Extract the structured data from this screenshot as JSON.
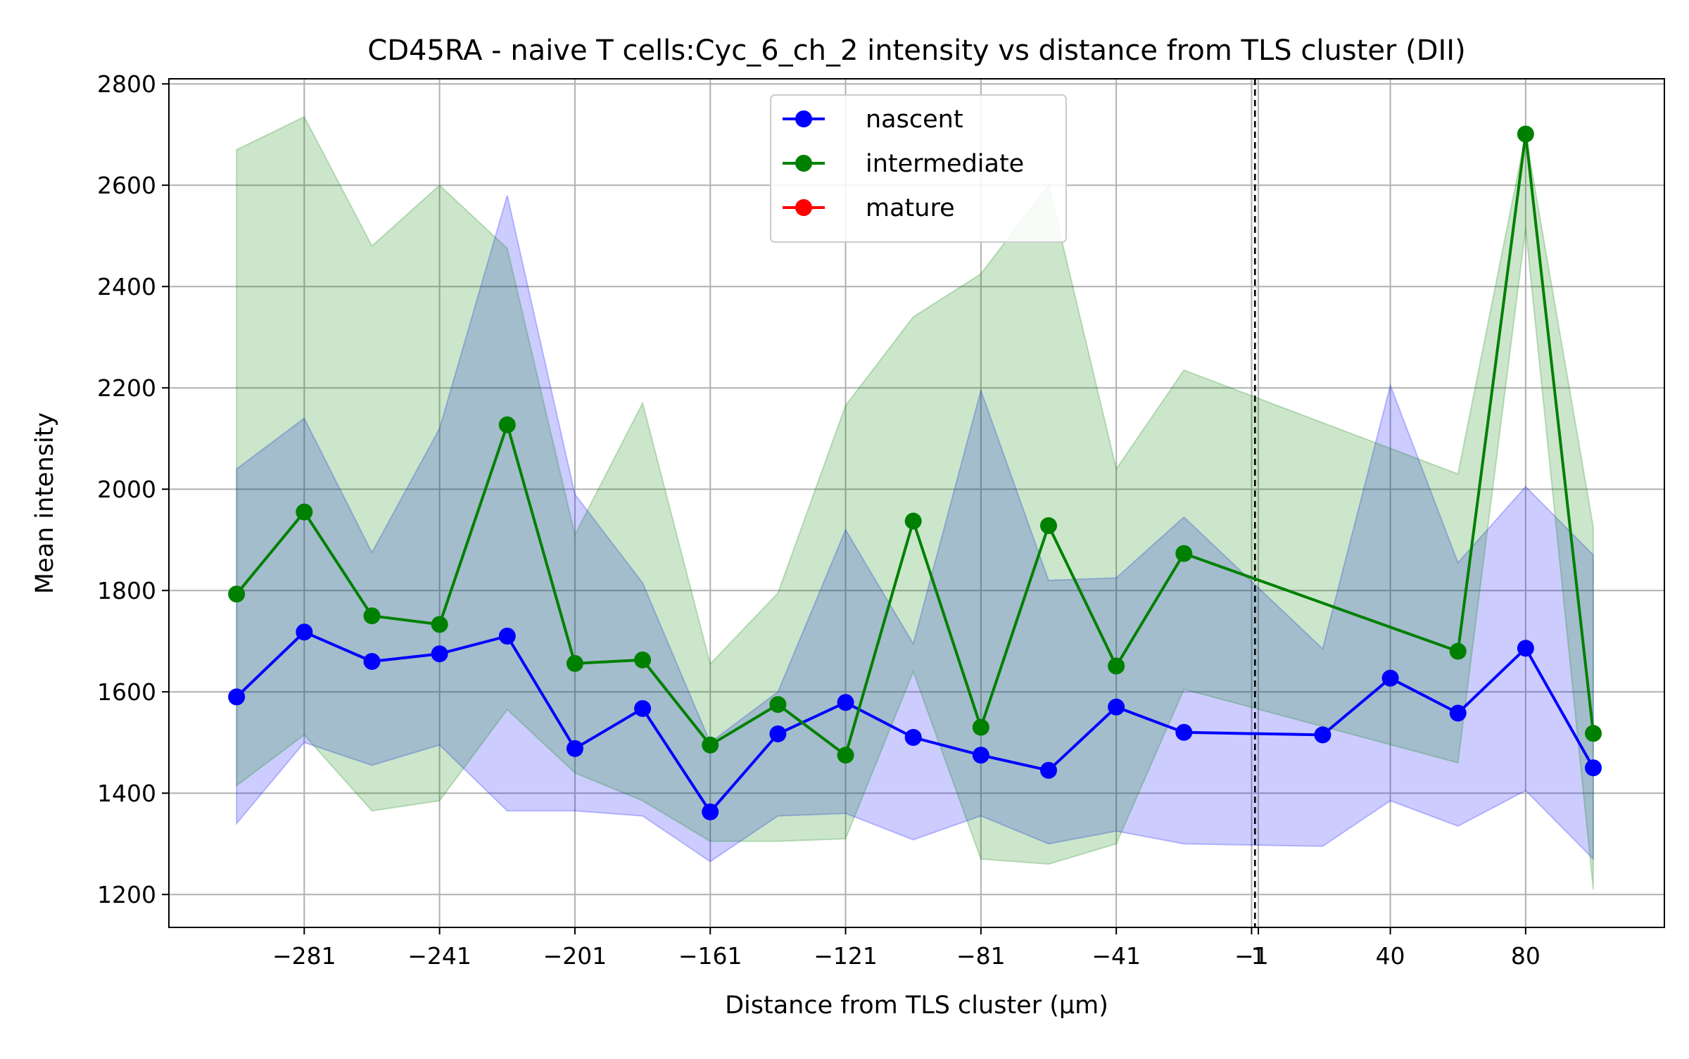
{
  "chart_data": {
    "type": "line",
    "title": "CD45RA - naive T cells:Cyc_6_ch_2 intensity vs distance from TLS cluster (DII)",
    "xlabel": "Distance from TLS cluster (μm)",
    "ylabel": "Mean intensity",
    "xlim": [
      -321,
      121
    ],
    "ylim": [
      1135,
      2810
    ],
    "xticks": [
      -281,
      -241,
      -201,
      -161,
      -121,
      -81,
      -41,
      -1,
      1,
      40,
      80
    ],
    "xtick_labels": [
      "−281",
      "−241",
      "−201",
      "−161",
      "−121",
      "−81",
      "−41",
      "−1",
      "1",
      "40",
      "80"
    ],
    "yticks": [
      1200,
      1400,
      1600,
      1800,
      2000,
      2200,
      2400,
      2600,
      2800
    ],
    "ytick_labels": [
      "1200",
      "1400",
      "1600",
      "1800",
      "2000",
      "2200",
      "2400",
      "2600",
      "2800"
    ],
    "grid": true,
    "legend_position": "top-center",
    "vline": {
      "x": 0,
      "style": "dashed",
      "color": "#000000"
    },
    "series": [
      {
        "name": "nascent",
        "color": "#0000ff",
        "fill": "#0000ff",
        "x": [
          -301,
          -281,
          -261,
          -241,
          -221,
          -201,
          -181,
          -161,
          -141,
          -121,
          -101,
          -81,
          -61,
          -41,
          -21,
          20,
          40,
          60,
          80,
          100
        ],
        "values": [
          1590,
          1718,
          1660,
          1675,
          1710,
          1488,
          1567,
          1363,
          1517,
          1579,
          1510,
          1475,
          1445,
          1570,
          1520,
          1515,
          1627,
          1558,
          1686,
          1450
        ],
        "lower": [
          1340,
          1500,
          1455,
          1495,
          1365,
          1365,
          1355,
          1265,
          1355,
          1360,
          1308,
          1355,
          1300,
          1325,
          1300,
          1295,
          1385,
          1335,
          1405,
          1270
        ],
        "upper": [
          2040,
          2140,
          1875,
          2120,
          2580,
          1990,
          1815,
          1500,
          1600,
          1920,
          1695,
          2195,
          1820,
          1825,
          1945,
          1685,
          2205,
          1855,
          2005,
          1870
        ]
      },
      {
        "name": "intermediate",
        "color": "#008000",
        "fill": "#008000",
        "x": [
          -301,
          -281,
          -261,
          -241,
          -221,
          -201,
          -181,
          -161,
          -141,
          -121,
          -101,
          -81,
          -61,
          -41,
          -21,
          60,
          80,
          100
        ],
        "values": [
          1793,
          1955,
          1750,
          1733,
          2127,
          1656,
          1663,
          1495,
          1575,
          1475,
          1937,
          1530,
          1928,
          1651,
          1873,
          1680,
          2701,
          1518
        ],
        "lower": [
          1415,
          1515,
          1365,
          1385,
          1565,
          1440,
          1385,
          1305,
          1305,
          1310,
          1640,
          1270,
          1260,
          1300,
          1605,
          1460,
          2515,
          1210
        ],
        "upper": [
          2670,
          2735,
          2480,
          2600,
          2475,
          1910,
          2170,
          1655,
          1795,
          2165,
          2340,
          2425,
          2600,
          2040,
          2235,
          2030,
          2700,
          1925
        ]
      },
      {
        "name": "mature",
        "color": "#ff0000",
        "fill": "#ff0000",
        "x": [],
        "values": [],
        "lower": [],
        "upper": []
      }
    ]
  }
}
